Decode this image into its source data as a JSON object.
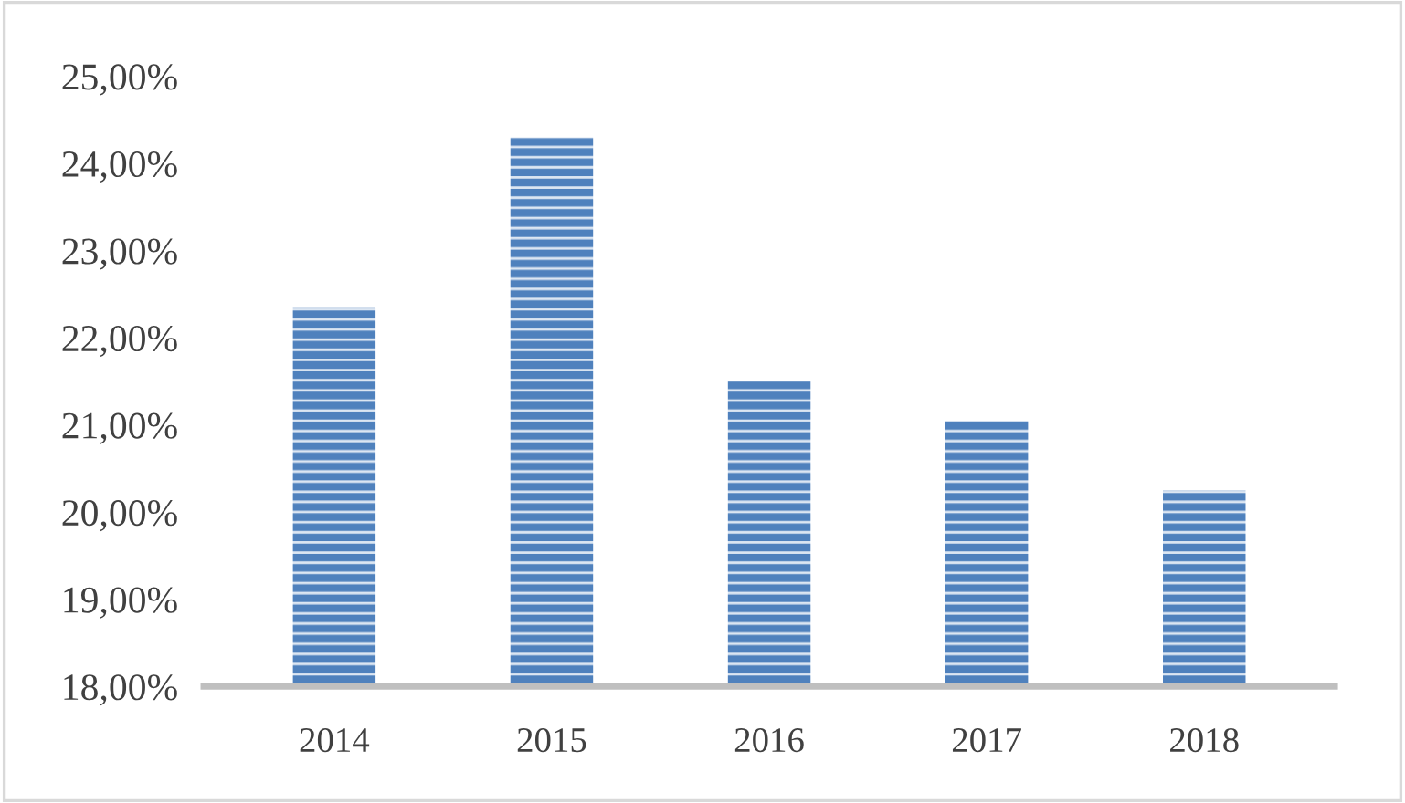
{
  "chart_data": {
    "type": "bar",
    "categories": [
      "2014",
      "2015",
      "2016",
      "2017",
      "2018"
    ],
    "values": [
      22.35,
      24.3,
      21.5,
      21.05,
      20.25
    ],
    "color": "#4f81bd",
    "ylim": [
      18,
      25
    ],
    "yticks": [
      {
        "value": 18,
        "label": "18,00%"
      },
      {
        "value": 19,
        "label": "19,00%"
      },
      {
        "value": 20,
        "label": "20,00%"
      },
      {
        "value": 21,
        "label": "21,00%"
      },
      {
        "value": 22,
        "label": "22,00%"
      },
      {
        "value": 23,
        "label": "23,00%"
      },
      {
        "value": 24,
        "label": "24,00%"
      },
      {
        "value": 25,
        "label": "25,00%"
      }
    ],
    "grid": false
  }
}
